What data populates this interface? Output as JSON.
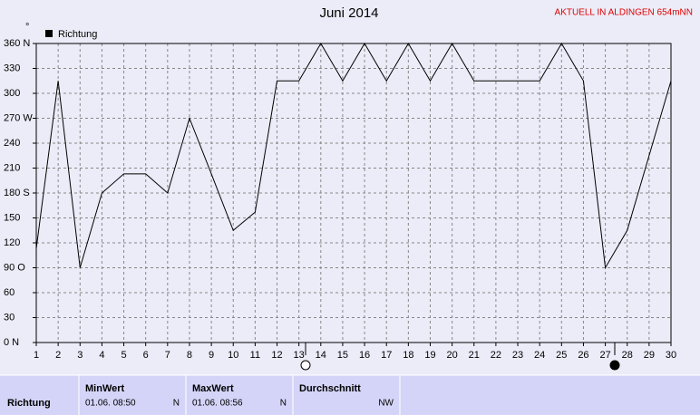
{
  "chart_data": {
    "type": "line",
    "title": "Juni 2014",
    "subtitle": "AKTUELL IN ALDINGEN 654mNN",
    "y_unit": "°",
    "x": [
      1,
      2,
      3,
      4,
      5,
      6,
      7,
      8,
      9,
      10,
      11,
      12,
      13,
      14,
      15,
      16,
      17,
      18,
      19,
      20,
      21,
      22,
      23,
      24,
      25,
      26,
      27,
      28,
      29,
      30
    ],
    "series": [
      {
        "name": "Richtung",
        "color": "#000000",
        "values": [
          113,
          315,
          90,
          180,
          203,
          203,
          180,
          270,
          203,
          135,
          157,
          315,
          315,
          360,
          315,
          360,
          315,
          360,
          315,
          360,
          315,
          315,
          315,
          315,
          360,
          315,
          90,
          135,
          225,
          315
        ]
      }
    ],
    "xlim": [
      1,
      30
    ],
    "xticks": [
      1,
      2,
      3,
      4,
      5,
      6,
      7,
      8,
      9,
      10,
      11,
      12,
      13,
      14,
      15,
      16,
      17,
      18,
      19,
      20,
      21,
      22,
      23,
      24,
      25,
      26,
      27,
      28,
      29,
      30
    ],
    "ylim": [
      0,
      360
    ],
    "yticks": [
      {
        "value": 0,
        "label": "0 N"
      },
      30,
      60,
      {
        "value": 90,
        "label": "90 O"
      },
      120,
      150,
      {
        "value": 180,
        "label": "180 S"
      },
      210,
      240,
      {
        "value": 270,
        "label": "270 W"
      },
      300,
      330,
      {
        "value": 360,
        "label": "360 N"
      }
    ],
    "grid": true,
    "legend": "top-left"
  },
  "table": {
    "row_label": "Richtung",
    "columns": [
      {
        "header": "MinWert",
        "time": "01.06.  08:50",
        "value": "N"
      },
      {
        "header": "MaxWert",
        "time": "01.06.  08:56",
        "value": "N"
      },
      {
        "header": "Durchschnitt",
        "value": "NW"
      }
    ]
  }
}
